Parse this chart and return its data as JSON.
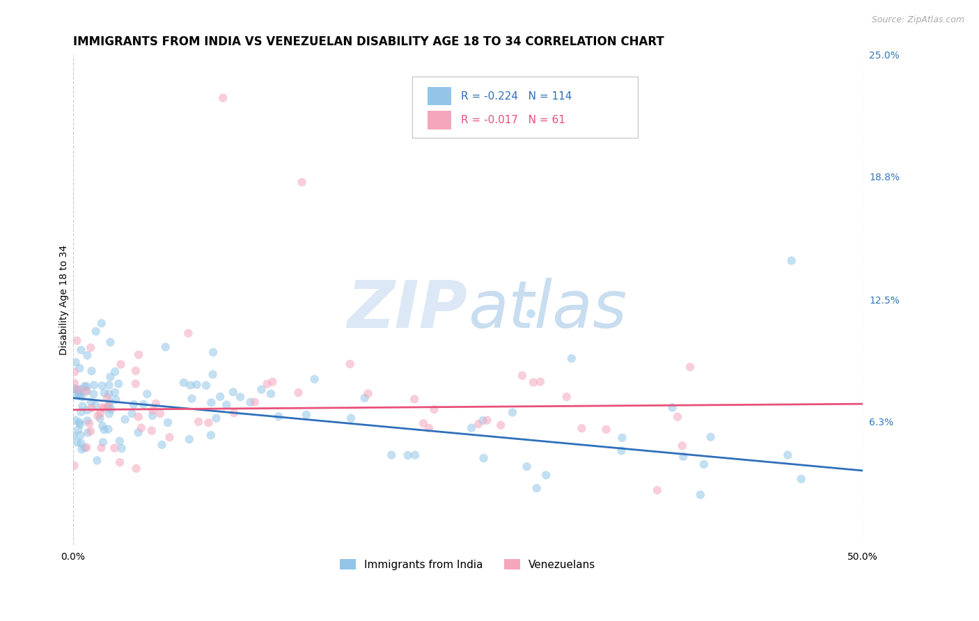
{
  "title": "IMMIGRANTS FROM INDIA VS VENEZUELAN DISABILITY AGE 18 TO 34 CORRELATION CHART",
  "source": "Source: ZipAtlas.com",
  "ylabel": "Disability Age 18 to 34",
  "xlim": [
    0.0,
    0.5
  ],
  "ylim": [
    0.0,
    0.1
  ],
  "ytick_labels_right": [
    "6.3%",
    "12.5%",
    "18.8%",
    "25.0%"
  ],
  "ytick_vals_right": [
    0.063,
    0.125,
    0.188,
    0.25
  ],
  "background_color": "#ffffff",
  "watermark_zip": "ZIP",
  "watermark_atlas": "atlas",
  "watermark_color": "#dce8f5",
  "india_color": "#92c5e8",
  "venezuela_color": "#f4a7bc",
  "india_R": -0.224,
  "india_N": 114,
  "venezuela_R": -0.017,
  "venezuela_N": 61,
  "india_trend_color": "#2f6fba",
  "venezuela_trend_color": "#e8507a",
  "legend_label_india": "Immigrants from India",
  "legend_label_venezuela": "Venezuelans",
  "dot_size": 80,
  "dot_alpha": 0.55,
  "grid_color": "#cccccc",
  "grid_linestyle": "--",
  "title_fontsize": 12,
  "axis_label_fontsize": 10,
  "tick_fontsize": 10,
  "right_tick_color": "#3377bb",
  "india_trend_x0": 0.0,
  "india_trend_y0": 0.075,
  "india_trend_x1": 0.5,
  "india_trend_y1": 0.038,
  "ven_trend_x0": 0.0,
  "ven_trend_y0": 0.069,
  "ven_trend_x1": 0.5,
  "ven_trend_y1": 0.072
}
